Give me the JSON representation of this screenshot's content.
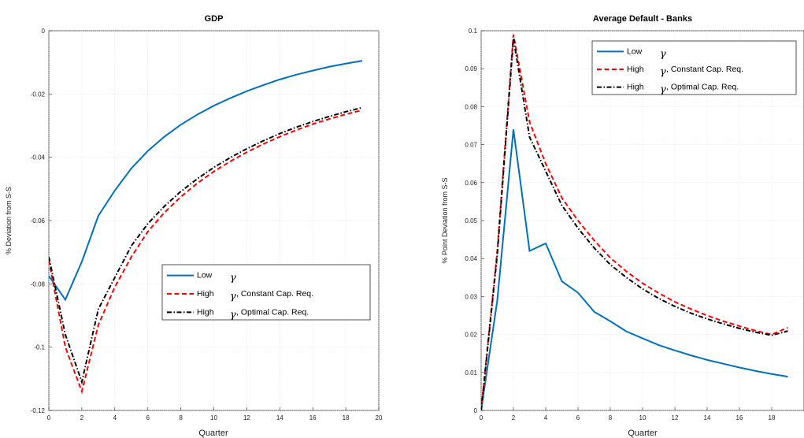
{
  "chart_data": [
    {
      "type": "line",
      "title": "GDP",
      "xlabel": "Quarter",
      "ylabel": "% Deviation from S-S",
      "xlim": [
        0,
        20
      ],
      "ylim": [
        -0.12,
        0
      ],
      "xticks": [
        0,
        2,
        4,
        6,
        8,
        10,
        12,
        14,
        16,
        18,
        20
      ],
      "yticks": [
        0,
        -0.02,
        -0.04,
        -0.06,
        -0.08,
        -0.1,
        -0.12
      ],
      "xtick_labels": [
        "0",
        "2",
        "4",
        "6",
        "8",
        "10",
        "12",
        "14",
        "16",
        "18",
        "20"
      ],
      "ytick_labels": [
        "0",
        "-0.02",
        "-0.04",
        "-0.06",
        "-0.08",
        "-0.1",
        "-0.12"
      ],
      "grid": true,
      "legend_position": "lower-right",
      "x": [
        0,
        1,
        2,
        3,
        4,
        5,
        6,
        7,
        8,
        9,
        10,
        11,
        12,
        13,
        14,
        15,
        16,
        17,
        18,
        19
      ],
      "series": [
        {
          "name": "Low",
          "symbol": "γ",
          "suffix": "",
          "color": "#0072BD",
          "dash": "solid",
          "values": [
            -0.0775,
            -0.085,
            -0.073,
            -0.0585,
            -0.0505,
            -0.0435,
            -0.038,
            -0.0335,
            -0.0297,
            -0.0265,
            -0.0237,
            -0.0213,
            -0.0191,
            -0.0172,
            -0.0154,
            -0.0139,
            -0.0126,
            -0.0114,
            -0.0104,
            -0.0095
          ]
        },
        {
          "name": "High",
          "symbol": "γ",
          "suffix": ", Constant Cap. Req.",
          "color": "#ff0000",
          "dash": "dashed",
          "values": [
            -0.0725,
            -0.1,
            -0.114,
            -0.093,
            -0.081,
            -0.0715,
            -0.0635,
            -0.0575,
            -0.0525,
            -0.0482,
            -0.0445,
            -0.0413,
            -0.0384,
            -0.0358,
            -0.0335,
            -0.0314,
            -0.0295,
            -0.0279,
            -0.0264,
            -0.0251
          ]
        },
        {
          "name": "High",
          "symbol": "γ",
          "suffix": ", Optimal Cap. Req.",
          "color": "#000000",
          "dash": "dashdot",
          "values": [
            -0.0715,
            -0.096,
            -0.111,
            -0.088,
            -0.078,
            -0.068,
            -0.061,
            -0.0555,
            -0.0508,
            -0.0468,
            -0.0432,
            -0.0401,
            -0.0373,
            -0.0348,
            -0.0325,
            -0.0305,
            -0.0287,
            -0.0271,
            -0.0256,
            -0.0243
          ]
        }
      ]
    },
    {
      "type": "line",
      "title": "Average Default - Banks",
      "xlabel": "Quarter",
      "ylabel": "% Point Deviation from S-S",
      "xlim": [
        0,
        20
      ],
      "ylim": [
        0,
        0.1
      ],
      "xticks": [
        0,
        2,
        4,
        6,
        8,
        10,
        12,
        14,
        16,
        18
      ],
      "yticks": [
        0,
        0.01,
        0.02,
        0.03,
        0.04,
        0.05,
        0.06,
        0.07,
        0.08,
        0.09,
        0.1
      ],
      "xtick_labels": [
        "0",
        "2",
        "4",
        "6",
        "8",
        "10",
        "12",
        "14",
        "16",
        "18"
      ],
      "ytick_labels": [
        "0",
        "0.01",
        "0.02",
        "0.03",
        "0.04",
        "0.05",
        "0.06",
        "0.07",
        "0.08",
        "0.09",
        "0.1"
      ],
      "grid": true,
      "legend_position": "top-right",
      "x": [
        0,
        1,
        2,
        3,
        4,
        5,
        6,
        7,
        8,
        9,
        10,
        11,
        12,
        13,
        14,
        15,
        16,
        17,
        18,
        19
      ],
      "series": [
        {
          "name": "Low",
          "symbol": "γ",
          "suffix": "",
          "color": "#0072BD",
          "dash": "solid",
          "values": [
            0,
            0.029,
            0.074,
            0.042,
            0.044,
            0.034,
            0.031,
            0.026,
            0.0235,
            0.0208,
            0.019,
            0.0172,
            0.0158,
            0.0145,
            0.0133,
            0.0123,
            0.0113,
            0.0104,
            0.0096,
            0.0089
          ]
        },
        {
          "name": "High",
          "symbol": "γ",
          "suffix": ", Constant Cap. Req.",
          "color": "#ff0000",
          "dash": "dashed",
          "values": [
            0,
            0.042,
            0.099,
            0.076,
            0.065,
            0.056,
            0.05,
            0.0448,
            0.0402,
            0.0366,
            0.0335,
            0.0309,
            0.0286,
            0.0267,
            0.025,
            0.0235,
            0.0222,
            0.021,
            0.02,
            0.0218
          ]
        },
        {
          "name": "High",
          "symbol": "γ",
          "suffix": ", Optimal Cap. Req.",
          "color": "#000000",
          "dash": "dashdot",
          "values": [
            0,
            0.041,
            0.098,
            0.072,
            0.063,
            0.054,
            0.048,
            0.0428,
            0.0384,
            0.035,
            0.032,
            0.0295,
            0.0274,
            0.0256,
            0.0241,
            0.0228,
            0.0216,
            0.0206,
            0.0198,
            0.0209
          ]
        }
      ]
    }
  ]
}
